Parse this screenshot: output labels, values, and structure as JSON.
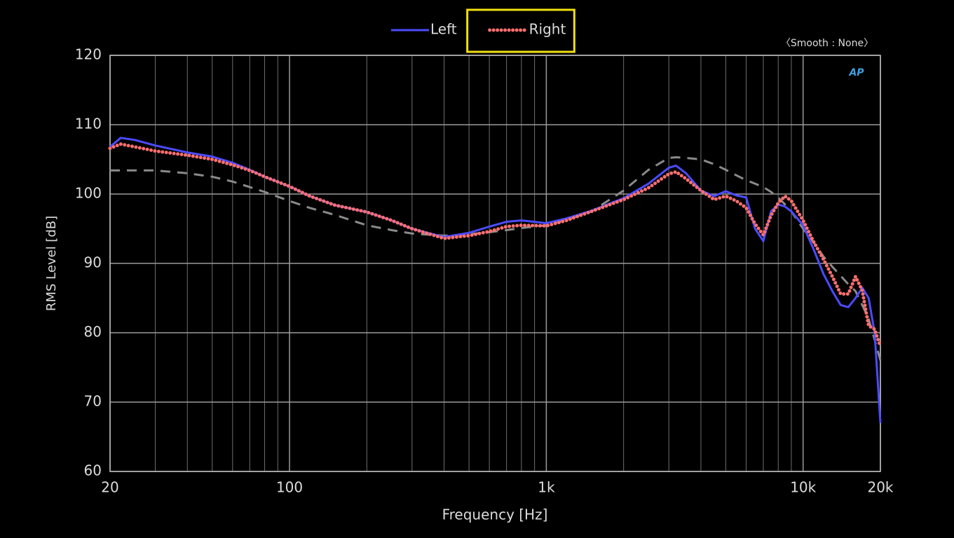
{
  "chart_data": {
    "type": "line",
    "xlabel": "Frequency [Hz]",
    "ylabel": "RMS Level [dB]",
    "annotation": "〈Smooth : None〉",
    "logo": "AP",
    "xscale": "log",
    "grid": true,
    "x": [
      20,
      22,
      25,
      30,
      40,
      50,
      60,
      70,
      80,
      100,
      120,
      150,
      200,
      250,
      300,
      400,
      500,
      600,
      700,
      800,
      1000,
      1200,
      1500,
      2000,
      2500,
      3000,
      3200,
      3500,
      4000,
      4500,
      5000,
      5500,
      6000,
      6500,
      7000,
      7500,
      8000,
      8500,
      9000,
      10000,
      11000,
      12000,
      13000,
      14000,
      15000,
      16000,
      17000,
      18000,
      19000,
      20000
    ],
    "series": [
      {
        "name": "Left",
        "color": "#4b4bff",
        "style": "solid",
        "values": [
          106.8,
          108.1,
          107.8,
          107.0,
          106.0,
          105.4,
          104.5,
          103.5,
          102.5,
          101.1,
          99.7,
          98.4,
          97.4,
          96.2,
          95.0,
          93.8,
          94.4,
          95.3,
          96.0,
          96.2,
          95.8,
          96.5,
          97.6,
          99.4,
          101.5,
          103.8,
          104.1,
          103.0,
          100.5,
          99.7,
          100.4,
          99.8,
          99.5,
          95.0,
          93.2,
          97.5,
          98.5,
          98.2,
          97.5,
          95.5,
          92.0,
          88.5,
          86.0,
          84.0,
          83.7,
          85.0,
          86.5,
          85.0,
          80.0,
          67.0
        ]
      },
      {
        "name": "Right",
        "color": "#ff6f6f",
        "style": "dotted",
        "values": [
          106.6,
          107.2,
          106.8,
          106.2,
          105.6,
          105.0,
          104.2,
          103.4,
          102.5,
          101.1,
          99.7,
          98.4,
          97.4,
          96.2,
          95.0,
          93.6,
          94.0,
          94.6,
          95.3,
          95.5,
          95.4,
          96.2,
          97.5,
          99.2,
          100.9,
          102.9,
          103.2,
          102.2,
          100.5,
          99.2,
          99.7,
          99.0,
          98.0,
          95.7,
          94.1,
          96.9,
          98.7,
          99.7,
          99.0,
          96.2,
          93.1,
          90.6,
          88.1,
          85.6,
          85.6,
          88.1,
          86.1,
          81.0,
          80.5,
          78.0
        ]
      },
      {
        "color": "#8a8a8a",
        "style": "dashed",
        "values": [
          103.4,
          103.4,
          103.4,
          103.4,
          103.0,
          102.5,
          101.8,
          101.0,
          100.3,
          99.0,
          98.0,
          97.0,
          95.5,
          94.8,
          94.3,
          94.0,
          94.2,
          94.5,
          94.8,
          95.1,
          95.5,
          96.3,
          97.5,
          100.5,
          103.5,
          105.2,
          105.3,
          105.2,
          105.0,
          104.3,
          103.5,
          102.7,
          102.0,
          101.5,
          101.0,
          100.3,
          99.5,
          98.5,
          97.5,
          95.0,
          93.0,
          91.0,
          89.5,
          88.2,
          87.0,
          86.0,
          84.0,
          82.0,
          79.0,
          76.0
        ]
      }
    ],
    "xlim": [
      20,
      20000
    ],
    "ylim": [
      60,
      120
    ],
    "xticks": [
      20,
      100,
      {
        "value": 1000,
        "label": "1k"
      },
      {
        "value": 10000,
        "label": "10k"
      },
      {
        "value": 20000,
        "label": "20k"
      }
    ],
    "minor_xticks": [
      30,
      40,
      50,
      60,
      70,
      80,
      90,
      200,
      300,
      400,
      500,
      600,
      700,
      800,
      900,
      2000,
      3000,
      4000,
      5000,
      6000,
      7000,
      8000,
      9000
    ],
    "yticks": [
      60,
      70,
      80,
      90,
      100,
      110,
      120
    ],
    "highlight": "Right"
  }
}
